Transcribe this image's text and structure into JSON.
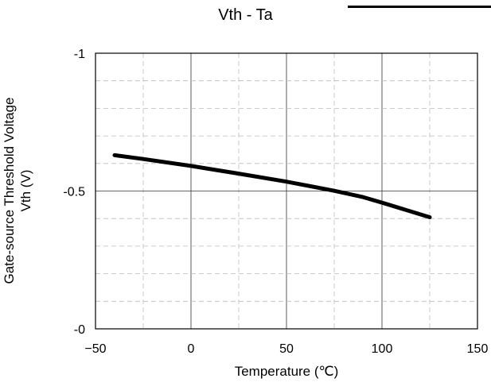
{
  "chart_data": {
    "type": "line",
    "title": "Vth - Ta",
    "xlabel": "Temperature (℃)",
    "ylabel_line1": "Gate-source Threshold Voltage",
    "ylabel_line2": "Vth (V)",
    "xlim": [
      -50,
      150
    ],
    "ylim": [
      -1,
      0
    ],
    "y_reversed": true,
    "x_ticks": [
      -50,
      0,
      50,
      100,
      150
    ],
    "x_tick_labels": [
      "−50",
      "0",
      "50",
      "100",
      "150"
    ],
    "y_ticks": [
      -1,
      -0.5,
      0
    ],
    "y_tick_labels": [
      "-1",
      "-0.5",
      "-0"
    ],
    "x_minor_step": 25,
    "y_minor_step": 0.1,
    "grid": true,
    "series": [
      {
        "x": [
          -40,
          -25,
          0,
          25,
          50,
          75,
          90,
          100,
          125
        ],
        "y": [
          -0.63,
          -0.616,
          -0.591,
          -0.563,
          -0.534,
          -0.501,
          -0.478,
          -0.458,
          -0.405
        ]
      }
    ],
    "line_color": "#000000"
  }
}
